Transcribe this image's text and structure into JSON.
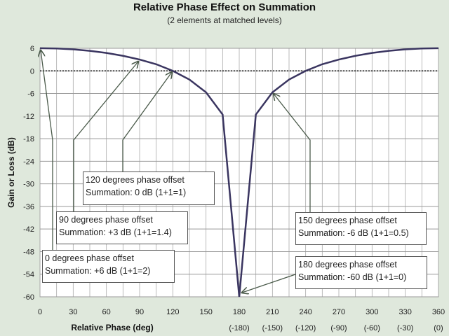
{
  "chart_data": {
    "type": "line",
    "title": "Relative Phase Effect on Summation",
    "subtitle": "(2 elements at matched levels)",
    "xlabel": "Relative Phase (deg)",
    "ylabel": "Gain or Loss (dB)",
    "xlim": [
      0,
      360
    ],
    "ylim": [
      -60,
      6
    ],
    "grid": true,
    "xticks": [
      "0",
      "30",
      "60",
      "90",
      "120",
      "150",
      "180",
      "210",
      "240",
      "270",
      "300",
      "330",
      "360"
    ],
    "xticks_alt": [
      "(-180)",
      "(-150)",
      "(-120)",
      "(-90)",
      "(-60)",
      "(-30)",
      "(0)"
    ],
    "yticks": [
      "6",
      "0",
      "-6",
      "-12",
      "-18",
      "-24",
      "-30",
      "-36",
      "-42",
      "-48",
      "-54",
      "-60"
    ],
    "reference_line": {
      "y": 0,
      "style": "dotted"
    },
    "series": [
      {
        "name": "Summation",
        "color": "#3a3560",
        "x": [
          0,
          15,
          30,
          45,
          60,
          75,
          90,
          105,
          120,
          135,
          150,
          165,
          180,
          195,
          210,
          225,
          240,
          255,
          270,
          285,
          300,
          315,
          330,
          345,
          360
        ],
        "y": [
          6.02,
          5.96,
          5.72,
          5.33,
          4.77,
          4.0,
          3.01,
          1.77,
          0,
          -2.3,
          -5.7,
          -11.6,
          -60,
          -11.6,
          -5.7,
          -2.3,
          0,
          1.77,
          3.01,
          4.0,
          4.77,
          5.33,
          5.72,
          5.96,
          6.02
        ]
      }
    ],
    "annotations": [
      {
        "line1": "0 degrees phase offset",
        "line2": "Summation: +6 dB (1+1=2)",
        "x": 0,
        "y": 6
      },
      {
        "line1": "90 degrees phase offset",
        "line2": "Summation: +3 dB (1+1=1.4)",
        "x": 90,
        "y": 3
      },
      {
        "line1": "120 degrees phase offset",
        "line2": "Summation: 0 dB (1+1=1)",
        "x": 120,
        "y": 0
      },
      {
        "line1": "150 degrees phase offset",
        "line2": "Summation: -6 dB (1+1=0.5)",
        "x": 210,
        "y": -6
      },
      {
        "line1": "180 degrees phase offset",
        "line2": "Summation: -60 dB (1+1=0)",
        "x": 180,
        "y": -60
      }
    ]
  }
}
